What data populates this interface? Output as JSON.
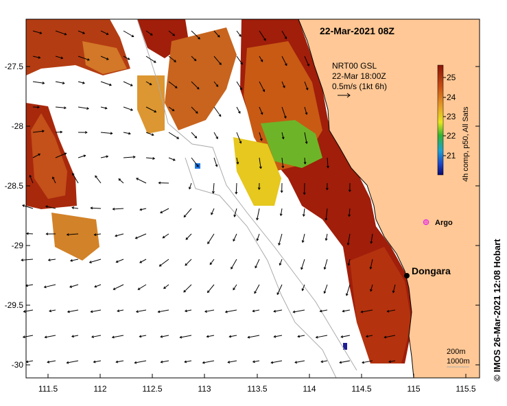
{
  "map": {
    "title": "22-Mar-2021 08Z",
    "product": "NRT00 GSL",
    "current_time": "22-Mar 18:00Z",
    "scale_label": "0.5m/s (1kt 6h)",
    "colorbar_label": "4h comp, p50, All Sats",
    "colorbar_ticks": [
      "25",
      "24",
      "23",
      "22",
      "21"
    ],
    "isobath_labels": [
      "200m",
      "1000m"
    ],
    "credit": "© IMOS 26-Mar-2021 12:08 Hobart",
    "places": [
      {
        "name": "Dongara",
        "type": "town"
      },
      {
        "name": "Argo",
        "type": "float"
      }
    ],
    "lat_ticks": [
      "-27.5",
      "-28",
      "-28.5",
      "-29",
      "-29.5",
      "-30"
    ],
    "lon_ticks": [
      "111.5",
      "112",
      "112.5",
      "113",
      "113.5",
      "114",
      "114.5",
      "115",
      "115.5"
    ],
    "colors": {
      "land": "#ffc896",
      "warm": "#a01e0a",
      "mid": "#c85a14",
      "green": "#32b432",
      "yellow": "#f0e61e",
      "argo": "#e632e6"
    }
  }
}
